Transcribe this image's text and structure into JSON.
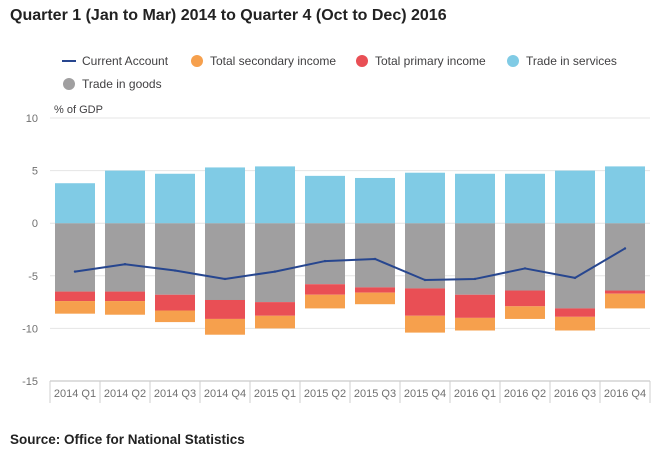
{
  "title": "Quarter 1 (Jan to Mar) 2014 to Quarter 4 (Oct to Dec) 2016",
  "source": "Source: Office for National Statistics",
  "chart_data": {
    "type": "bar",
    "stacked": true,
    "ylabel": "% of GDP",
    "ylim": [
      -15,
      10
    ],
    "yticks": [
      10,
      5,
      0,
      -5,
      -10,
      -15
    ],
    "grid": true,
    "legend_position": "top",
    "categories": [
      "2014 Q1",
      "2014 Q2",
      "2014 Q3",
      "2014 Q4",
      "2015 Q1",
      "2015 Q2",
      "2015 Q3",
      "2015 Q4",
      "2016 Q1",
      "2016 Q2",
      "2016 Q3",
      "2016 Q4"
    ],
    "series": [
      {
        "name": "Current Account",
        "kind": "line",
        "color": "#27468f",
        "values": [
          -4.6,
          -3.9,
          -4.5,
          -5.3,
          -4.6,
          -3.6,
          -3.4,
          -5.4,
          -5.3,
          -4.3,
          -5.2,
          -2.4
        ]
      },
      {
        "name": "Total secondary income",
        "kind": "bar",
        "color": "#f6a04d",
        "values": [
          -1.2,
          -1.3,
          -1.1,
          -1.5,
          -1.2,
          -1.3,
          -1.1,
          -1.6,
          -1.2,
          -1.2,
          -1.3,
          -1.4
        ]
      },
      {
        "name": "Total primary income",
        "kind": "bar",
        "color": "#e94f55",
        "values": [
          -0.9,
          -0.9,
          -1.5,
          -1.8,
          -1.3,
          -1.0,
          -0.5,
          -2.6,
          -2.2,
          -1.5,
          -0.8,
          -0.3
        ]
      },
      {
        "name": "Trade in services",
        "kind": "bar",
        "color": "#80cbe5",
        "values": [
          3.8,
          5.0,
          4.7,
          5.3,
          5.4,
          4.5,
          4.3,
          4.8,
          4.7,
          4.7,
          5.0,
          5.4
        ]
      },
      {
        "name": "Trade in goods",
        "kind": "bar",
        "color": "#a09fa0",
        "values": [
          -6.5,
          -6.5,
          -6.8,
          -7.3,
          -7.5,
          -5.8,
          -6.1,
          -6.2,
          -6.8,
          -6.4,
          -8.1,
          -6.4
        ]
      }
    ],
    "legend": [
      "Current Account",
      "Total secondary income",
      "Total primary income",
      "Trade in services",
      "Trade in goods"
    ]
  }
}
